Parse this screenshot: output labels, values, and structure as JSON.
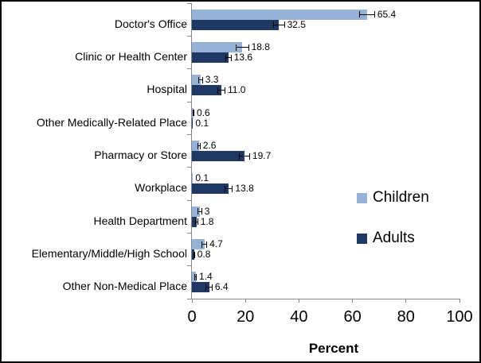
{
  "chart_data": {
    "type": "bar",
    "orientation": "horizontal",
    "title": "",
    "xlabel": "Percent",
    "xlim": [
      0,
      100
    ],
    "xticks": [
      0,
      20,
      40,
      60,
      80,
      100
    ],
    "grid": false,
    "legend_position": "right-middle",
    "categories": [
      "Doctor's Office",
      "Clinic or Health Center",
      "Hospital",
      "Other Medically-Related Place",
      "Pharmacy or Store",
      "Workplace",
      "Health Department",
      "Elementary/Middle/High School",
      "Other Non-Medical Place"
    ],
    "series": [
      {
        "name": "Children",
        "color": "#95B3D7",
        "values": [
          65.4,
          18.8,
          3.3,
          0.6,
          2.6,
          0.1,
          3,
          4.7,
          1.4
        ],
        "labels": [
          "65.4",
          "18.8",
          "3.3",
          "0.6",
          "2.6",
          "0.1",
          "3",
          "4.7",
          "1.4"
        ],
        "error_bars_est": [
          3.0,
          2.5,
          0.8,
          0.3,
          0.6,
          0,
          0.8,
          1.0,
          0.4
        ]
      },
      {
        "name": "Adults",
        "color": "#1F3864",
        "values": [
          32.5,
          13.6,
          11.0,
          0.1,
          19.7,
          13.8,
          1.8,
          0.8,
          6.4
        ],
        "labels": [
          "32.5",
          "13.6",
          "11.0",
          "0.1",
          "19.7",
          "13.8",
          "1.8",
          "0.8",
          "6.4"
        ],
        "error_bars_est": [
          2.2,
          1.2,
          1.5,
          0,
          2.0,
          1.5,
          0.5,
          0.3,
          1.3
        ]
      }
    ],
    "error_bar_color": "#000000",
    "axis_color": "#878787"
  }
}
